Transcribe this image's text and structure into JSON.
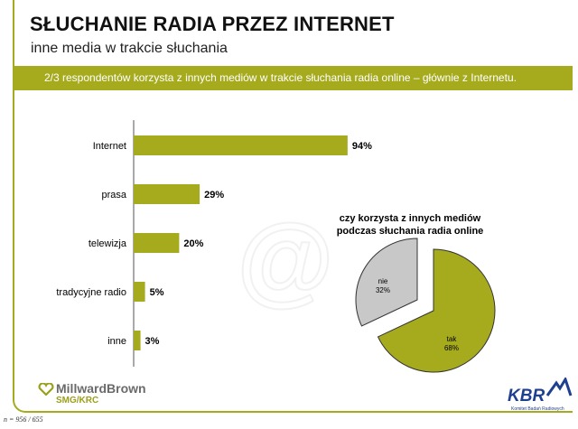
{
  "header": {
    "title": "SŁUCHANIE RADIA PRZEZ INTERNET",
    "subtitle": "inne media w trakcie słuchania",
    "banner": "2/3 respondentów korzysta z innych mediów w trakcie słuchania radia online – głównie z Internetu."
  },
  "colors": {
    "accent": "#a6ab1e",
    "grey_slice": "#c8c8c8"
  },
  "chart_data": [
    {
      "type": "bar",
      "orientation": "horizontal",
      "categories": [
        "Internet",
        "prasa",
        "telewizja",
        "tradycyjne radio",
        "inne"
      ],
      "values": [
        94,
        29,
        20,
        5,
        3
      ],
      "value_labels": [
        "94%",
        "29%",
        "20%",
        "5%",
        "3%"
      ],
      "xlim": [
        0,
        100
      ],
      "grid": false
    },
    {
      "type": "pie",
      "title": "czy korzysta z innych mediów podczas słuchania radia online",
      "title_lines": [
        "czy korzysta z innych mediów",
        "podczas słuchania radia online"
      ],
      "slices": [
        {
          "label": "nie",
          "value": 32,
          "value_label": "32%",
          "color": "#c8c8c8"
        },
        {
          "label": "tak",
          "value": 68,
          "value_label": "68%",
          "color": "#a6ab1e"
        }
      ]
    }
  ],
  "footer": {
    "logo_name": "MillwardBrown",
    "logo_sub": "SMG/KRC",
    "note": "n = 956 / 655",
    "kbr": "KBR",
    "kbr_sub": "Komitet Badań Radiowych"
  }
}
